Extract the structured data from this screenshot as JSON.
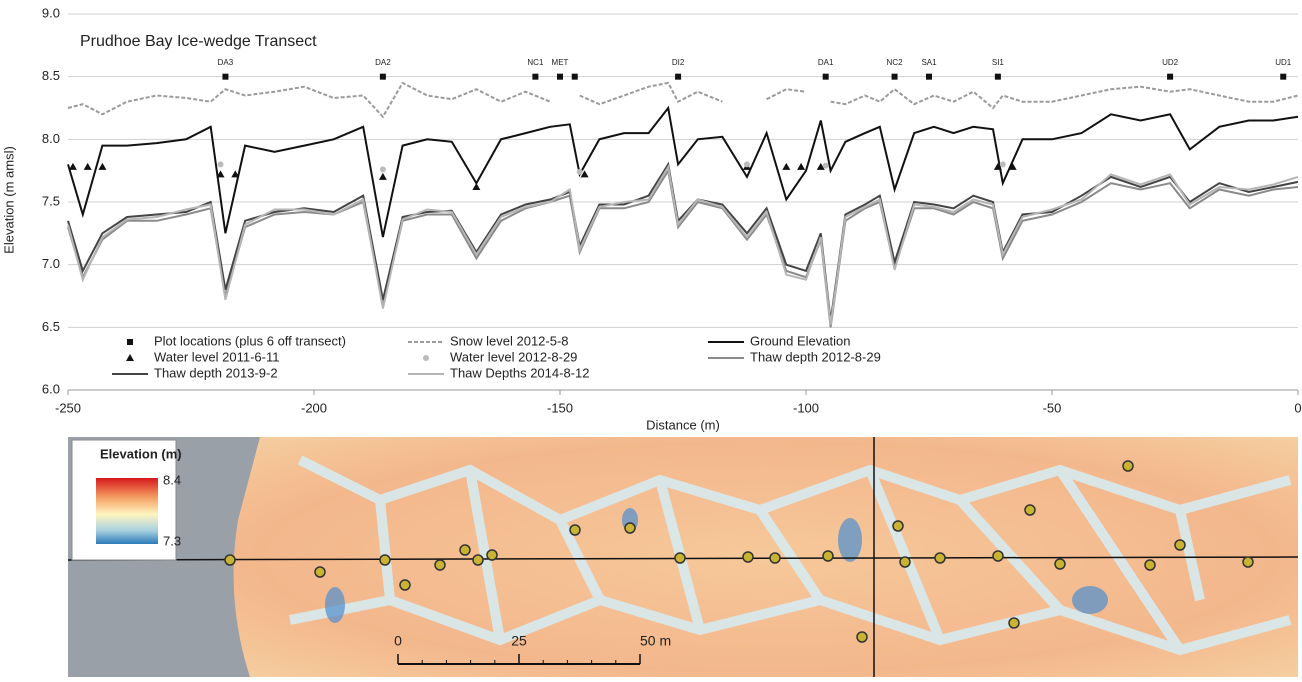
{
  "chart_data": {
    "type": "line",
    "title": "Prudhoe Bay Ice-wedge Transect",
    "x_label": "Distance (m)",
    "y_label": "Elevation (m amsl)",
    "xlim": [
      -250,
      0
    ],
    "xticks": [
      -250,
      -200,
      -150,
      -100,
      -50,
      0
    ],
    "ylim": [
      6,
      9
    ],
    "yticks": [
      {
        "value": 6,
        "label": "6.0"
      },
      {
        "value": 6.5,
        "label": "6.5"
      },
      {
        "value": 7,
        "label": "7.0"
      },
      {
        "value": 7.5,
        "label": "7.5"
      },
      {
        "value": 8,
        "label": "8.0"
      },
      {
        "value": 8.5,
        "label": "8.5"
      },
      {
        "value": 9,
        "label": "9.0"
      }
    ],
    "grid": true,
    "x": [
      -250,
      -247,
      -243,
      -238,
      -232,
      -226,
      -221,
      -218,
      -214,
      -208,
      -202,
      -196,
      -190,
      -186,
      -182,
      -177,
      -172,
      -167,
      -162,
      -157,
      -152,
      -148,
      -146,
      -142,
      -137,
      -132,
      -128,
      -126,
      -122,
      -117,
      -112,
      -108,
      -104,
      -100,
      -97,
      -95,
      -92,
      -88,
      -85,
      -82,
      -78,
      -74,
      -70,
      -66,
      -62,
      -60,
      -56,
      -50,
      -44,
      -38,
      -32,
      -26,
      -22,
      -16,
      -10,
      -5,
      0
    ],
    "series": [
      {
        "name": "Plot locations (plus 6 off transect)",
        "style": "marker",
        "marker": "square",
        "color": "#111111",
        "x": [
          -218,
          -186,
          -155,
          -150,
          -147,
          -126,
          -96,
          -82,
          -75,
          -61,
          -26,
          -3
        ],
        "values": [
          8.5,
          8.5,
          8.5,
          8.5,
          8.5,
          8.5,
          8.5,
          8.5,
          8.5,
          8.5,
          8.5,
          8.5
        ],
        "labels": [
          "DA3",
          "DA2",
          "NC1",
          "MET",
          null,
          "DI2",
          "DA1",
          "NC2",
          "SA1",
          "SI1",
          "UD2",
          "UD1"
        ]
      },
      {
        "name": "Snow level 2012-5-8",
        "style": "line",
        "dash": true,
        "color": "#9a9a9a",
        "values": [
          8.25,
          8.28,
          8.2,
          8.3,
          8.35,
          8.33,
          8.3,
          8.4,
          8.35,
          8.38,
          8.42,
          8.33,
          8.35,
          8.18,
          8.45,
          8.35,
          8.32,
          8.4,
          8.3,
          8.38,
          8.3,
          null,
          8.35,
          8.28,
          8.35,
          8.42,
          8.45,
          8.3,
          8.38,
          8.3,
          null,
          8.32,
          8.4,
          8.38,
          null,
          8.3,
          8.28,
          8.35,
          8.3,
          8.4,
          8.28,
          8.35,
          8.3,
          8.38,
          8.25,
          8.35,
          8.3,
          8.3,
          8.35,
          8.4,
          8.42,
          8.38,
          8.4,
          8.35,
          8.3,
          8.3,
          8.35
        ]
      },
      {
        "name": "Ground Elevation",
        "style": "line",
        "color": "#111111",
        "values": [
          7.8,
          7.4,
          7.95,
          7.95,
          7.97,
          8.0,
          8.1,
          7.25,
          7.95,
          7.9,
          7.95,
          8.0,
          8.1,
          7.22,
          7.95,
          8.0,
          7.98,
          7.65,
          8.0,
          8.05,
          8.1,
          8.12,
          7.72,
          8.0,
          8.05,
          8.05,
          8.25,
          7.8,
          8.0,
          8.02,
          7.7,
          8.05,
          7.52,
          7.75,
          8.15,
          7.75,
          7.98,
          8.05,
          8.1,
          7.6,
          8.05,
          8.1,
          8.05,
          8.1,
          8.08,
          7.65,
          8.0,
          8.0,
          8.05,
          8.2,
          8.15,
          8.2,
          7.92,
          8.1,
          8.15,
          8.15,
          8.18
        ]
      },
      {
        "name": "Water level 2011-6-11",
        "style": "marker",
        "marker": "triangle",
        "color": "#111111",
        "x": [
          -249,
          -246,
          -243,
          -219,
          -216,
          -186,
          -167,
          -145,
          -112,
          -104,
          -101,
          -97,
          -61,
          -58
        ],
        "values": [
          7.78,
          7.78,
          7.78,
          7.72,
          7.72,
          7.7,
          7.62,
          7.72,
          7.78,
          7.78,
          7.78,
          7.78,
          7.78,
          7.78
        ]
      },
      {
        "name": "Water level 2012-8-29",
        "style": "marker",
        "marker": "circle",
        "color": "#bbbbbb",
        "x": [
          -219,
          -186,
          -146,
          -112,
          -96,
          -60
        ],
        "values": [
          7.8,
          7.76,
          7.74,
          7.8,
          7.79,
          7.8
        ]
      },
      {
        "name": "Thaw depth 2012-8-29",
        "style": "line",
        "color": "#8a8a8a",
        "values": [
          7.3,
          6.9,
          7.2,
          7.35,
          7.35,
          7.4,
          7.45,
          6.75,
          7.3,
          7.4,
          7.42,
          7.4,
          7.5,
          6.68,
          7.35,
          7.4,
          7.4,
          7.05,
          7.35,
          7.45,
          7.5,
          7.55,
          7.1,
          7.45,
          7.45,
          7.5,
          7.75,
          7.3,
          7.5,
          7.45,
          7.2,
          7.4,
          6.95,
          6.9,
          7.2,
          6.5,
          7.35,
          7.45,
          7.5,
          6.98,
          7.45,
          7.45,
          7.4,
          7.5,
          7.45,
          7.05,
          7.35,
          7.4,
          7.5,
          7.65,
          7.6,
          7.65,
          7.45,
          7.6,
          7.55,
          7.6,
          7.62
        ]
      },
      {
        "name": "Thaw depth 2013-9-2",
        "style": "line",
        "color": "#444444",
        "values": [
          7.35,
          6.95,
          7.25,
          7.38,
          7.4,
          7.42,
          7.5,
          6.8,
          7.35,
          7.42,
          7.45,
          7.42,
          7.55,
          6.72,
          7.38,
          7.42,
          7.43,
          7.1,
          7.4,
          7.48,
          7.52,
          7.58,
          7.15,
          7.48,
          7.48,
          7.55,
          7.8,
          7.35,
          7.52,
          7.48,
          7.25,
          7.45,
          7.0,
          6.95,
          7.25,
          6.55,
          7.4,
          7.48,
          7.55,
          7.02,
          7.5,
          7.48,
          7.45,
          7.55,
          7.5,
          7.1,
          7.4,
          7.42,
          7.55,
          7.7,
          7.62,
          7.7,
          7.5,
          7.65,
          7.58,
          7.62,
          7.66
        ]
      },
      {
        "name": "Thaw Depths 2014-8-12",
        "style": "line",
        "color": "#b5b5b5",
        "values": [
          7.32,
          6.88,
          7.22,
          7.36,
          7.38,
          7.44,
          7.48,
          6.72,
          7.32,
          7.44,
          7.44,
          7.4,
          7.52,
          6.65,
          7.36,
          7.44,
          7.42,
          7.08,
          7.38,
          7.46,
          7.5,
          7.6,
          7.12,
          7.46,
          7.5,
          7.52,
          7.78,
          7.32,
          7.52,
          7.46,
          7.22,
          7.42,
          6.92,
          6.88,
          7.22,
          6.52,
          7.38,
          7.46,
          7.52,
          6.96,
          7.48,
          7.46,
          7.42,
          7.52,
          7.48,
          7.08,
          7.38,
          7.44,
          7.52,
          7.72,
          7.64,
          7.72,
          7.48,
          7.62,
          7.6,
          7.64,
          7.7
        ]
      }
    ]
  },
  "map": {
    "legend_title": "Elevation (m)",
    "legend_max": 8.4,
    "legend_min": 7.3,
    "scale_ticks": [
      0,
      25,
      {
        "value": 50,
        "label": "50 m"
      }
    ]
  }
}
